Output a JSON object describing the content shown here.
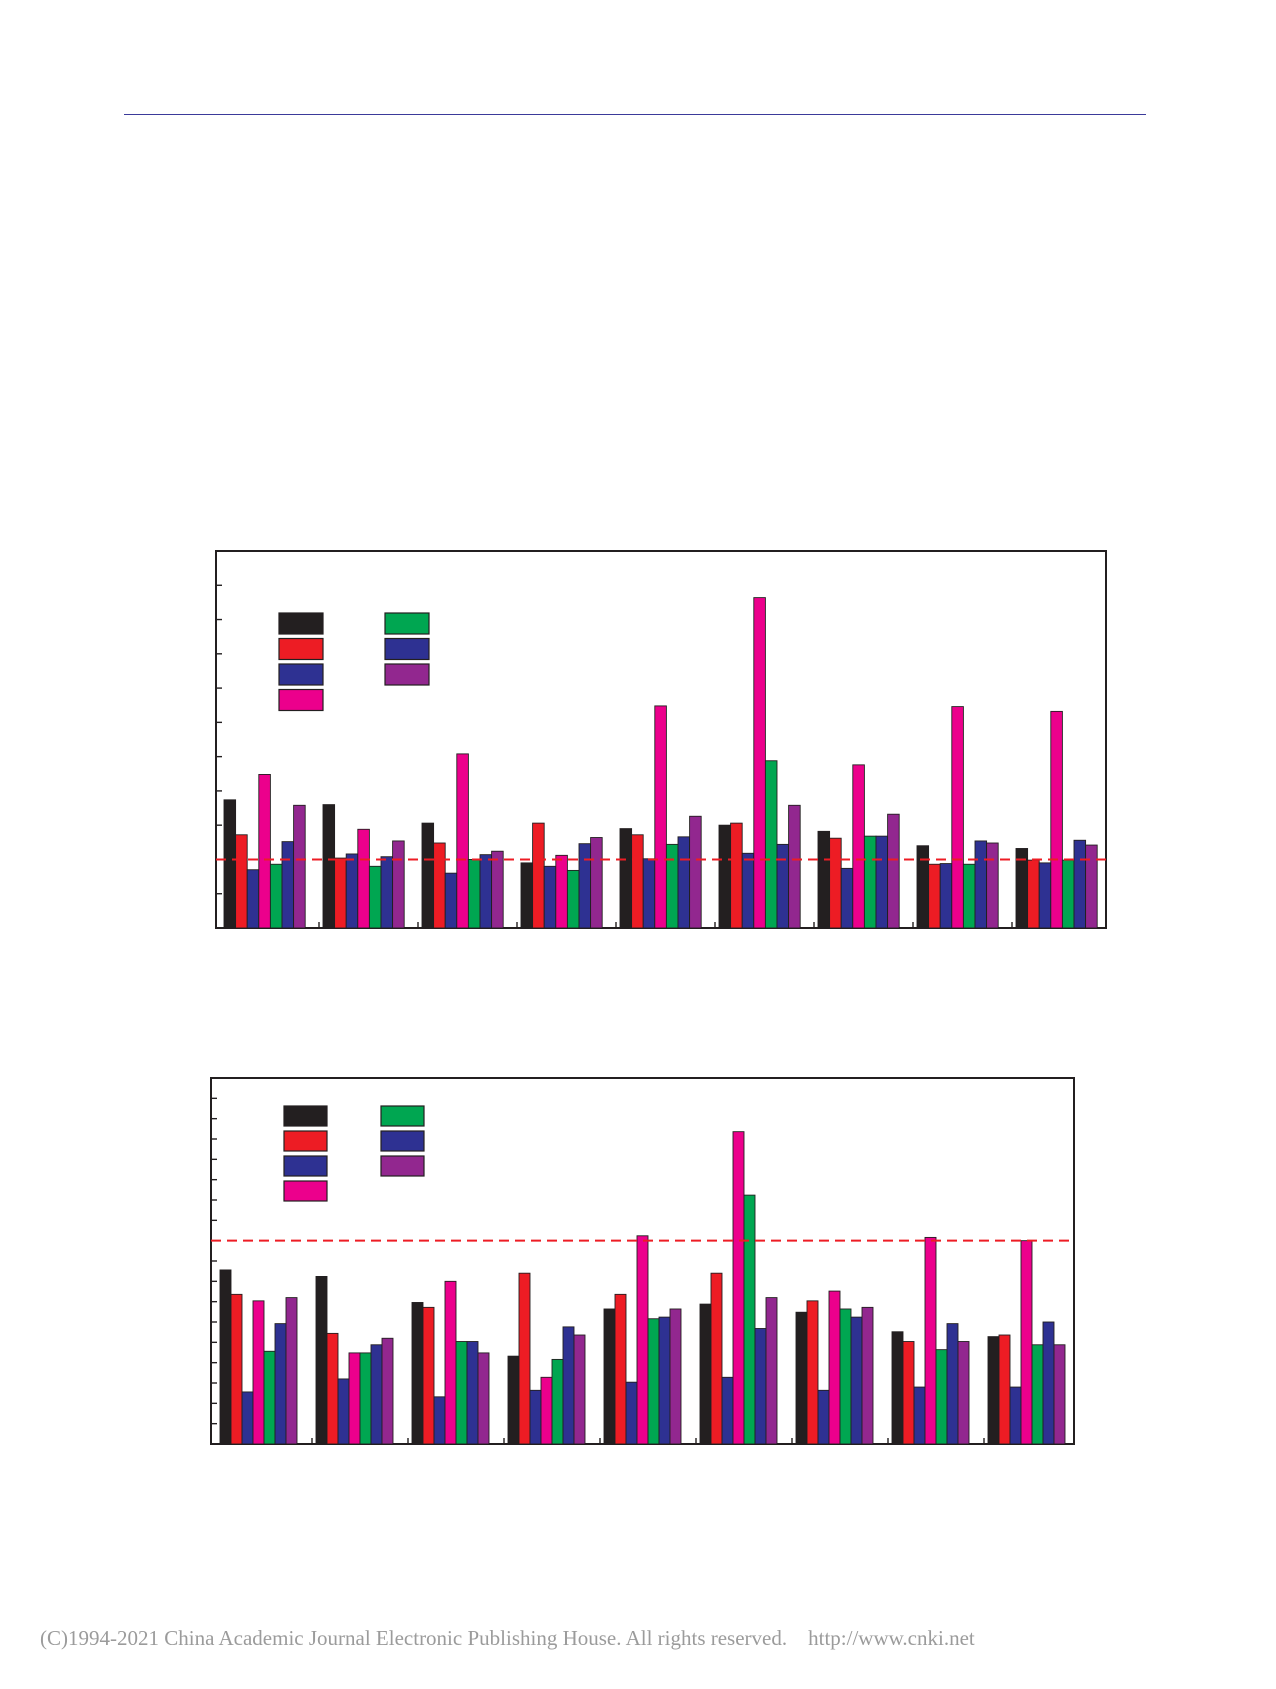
{
  "footer": {
    "copyright": "(C)1994-2021 China Academic Journal Electronic Publishing House. All rights reserved.    http://www.cnki.net"
  },
  "colors": {
    "series": [
      "#231f20",
      "#ed1c24",
      "#2e3192",
      "#ec008c",
      "#00a651",
      "#2e3192",
      "#92278f"
    ],
    "reference_line": "#ed1c24",
    "header_rule": "#3b3a9a"
  },
  "chart_data": [
    {
      "type": "bar",
      "title": "",
      "xlabel": "",
      "ylabel": "",
      "ylim": [
        0,
        5.5
      ],
      "yticks": 11,
      "categories": [
        "",
        "",
        "",
        "",
        "",
        "",
        "",
        "",
        ""
      ],
      "reference_line": 1.0,
      "grid": false,
      "legend": "top-left",
      "series": [
        {
          "color": "#231f20",
          "values": [
            1.87,
            1.8,
            1.53,
            0.95,
            1.45,
            1.5,
            1.41,
            1.2,
            1.16
          ]
        },
        {
          "color": "#ed1c24",
          "values": [
            1.36,
            1.02,
            1.24,
            1.53,
            1.36,
            1.53,
            1.31,
            0.93,
            0.99
          ]
        },
        {
          "color": "#2e3192",
          "values": [
            0.85,
            1.08,
            0.8,
            0.9,
            1.01,
            1.09,
            0.87,
            0.94,
            0.95
          ]
        },
        {
          "color": "#ec008c",
          "values": [
            2.24,
            1.44,
            2.54,
            1.06,
            3.24,
            4.82,
            2.38,
            3.23,
            3.16
          ]
        },
        {
          "color": "#00a651",
          "values": [
            0.93,
            0.9,
            1.0,
            0.84,
            1.22,
            2.44,
            1.34,
            0.93,
            0.99
          ]
        },
        {
          "color": "#2e3192",
          "values": [
            1.26,
            1.04,
            1.07,
            1.23,
            1.33,
            1.22,
            1.34,
            1.27,
            1.28
          ]
        },
        {
          "color": "#92278f",
          "values": [
            1.79,
            1.27,
            1.12,
            1.32,
            1.63,
            1.79,
            1.66,
            1.24,
            1.21
          ]
        }
      ]
    },
    {
      "type": "bar",
      "title": "",
      "xlabel": "",
      "ylabel": "",
      "ylim": [
        0,
        2.25
      ],
      "yticks": 18,
      "categories": [
        "",
        "",
        "",
        "",
        "",
        "",
        "",
        "",
        ""
      ],
      "reference_line": 1.25,
      "grid": false,
      "legend": "top-left",
      "series": [
        {
          "color": "#231f20",
          "values": [
            1.07,
            1.03,
            0.87,
            0.54,
            0.83,
            0.86,
            0.81,
            0.69,
            0.66
          ]
        },
        {
          "color": "#ed1c24",
          "values": [
            0.92,
            0.68,
            0.84,
            1.05,
            0.92,
            1.05,
            0.88,
            0.63,
            0.67
          ]
        },
        {
          "color": "#2e3192",
          "values": [
            0.32,
            0.4,
            0.29,
            0.33,
            0.38,
            0.41,
            0.33,
            0.35,
            0.35
          ]
        },
        {
          "color": "#ec008c",
          "values": [
            0.88,
            0.56,
            1.0,
            0.41,
            1.28,
            1.92,
            0.94,
            1.27,
            1.25
          ]
        },
        {
          "color": "#00a651",
          "values": [
            0.57,
            0.56,
            0.63,
            0.52,
            0.77,
            1.53,
            0.83,
            0.58,
            0.61
          ]
        },
        {
          "color": "#2e3192",
          "values": [
            0.74,
            0.61,
            0.63,
            0.72,
            0.78,
            0.71,
            0.78,
            0.74,
            0.75
          ]
        },
        {
          "color": "#92278f",
          "values": [
            0.9,
            0.65,
            0.56,
            0.67,
            0.83,
            0.9,
            0.84,
            0.63,
            0.61
          ]
        }
      ]
    }
  ]
}
